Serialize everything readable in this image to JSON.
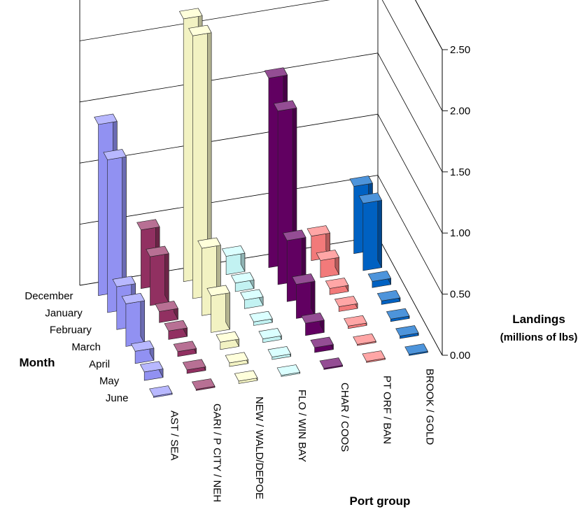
{
  "chart_data": {
    "type": "bar3d",
    "zlabel": "Landings",
    "zlabel_sub": "(millions of lbs)",
    "xlabel": "Port group",
    "ylabel": "Month",
    "zlim": [
      0,
      2.5
    ],
    "z_ticks": [
      "0.00",
      "0.50",
      "1.00",
      "1.50",
      "2.00",
      "2.50"
    ],
    "categories": [
      "AST / SEA",
      "GARI / P CITY / NEH",
      "NEW / WALD/DEPOE",
      "FLO / WIN BAY",
      "CHAR / COOS",
      "PT ORF / BAN",
      "BROOK / GOLD"
    ],
    "months": [
      "June",
      "May",
      "April",
      "March",
      "February",
      "January",
      "December"
    ],
    "series": [
      {
        "color": "#9999ff",
        "values": [
          0.01,
          0.07,
          0.1,
          0.35,
          0.35,
          1.25,
          1.4
        ]
      },
      {
        "color": "#993366",
        "values": [
          0.01,
          0.03,
          0.04,
          0.07,
          0.09,
          0.4,
          0.48
        ]
      },
      {
        "color": "#ffffcc",
        "values": [
          0.02,
          0.03,
          0.06,
          0.3,
          0.55,
          2.15,
          2.15
        ]
      },
      {
        "color": "#ccffff",
        "values": [
          0.01,
          0.02,
          0.03,
          0.03,
          0.07,
          0.07,
          0.15
        ]
      },
      {
        "color": "#660066",
        "values": [
          0.01,
          0.04,
          0.1,
          0.28,
          0.5,
          1.42,
          1.55
        ]
      },
      {
        "color": "#ff8080",
        "values": [
          0.01,
          0.01,
          0.02,
          0.04,
          0.05,
          0.14,
          0.2
        ]
      },
      {
        "color": "#0066cc",
        "values": [
          0.01,
          0.02,
          0.02,
          0.03,
          0.05,
          0.55,
          0.55
        ]
      }
    ]
  }
}
